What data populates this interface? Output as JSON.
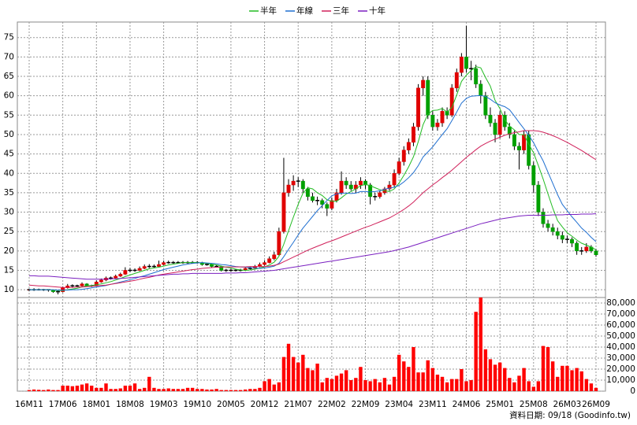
{
  "chart_data": {
    "type": "candlestick",
    "categories": [
      "16M11",
      null,
      null,
      null,
      null,
      null,
      null,
      "17M06",
      null,
      null,
      null,
      null,
      null,
      null,
      "18M01",
      null,
      null,
      null,
      null,
      null,
      null,
      "18M08",
      null,
      null,
      null,
      null,
      null,
      null,
      "19M03",
      null,
      null,
      null,
      null,
      null,
      null,
      "19M10",
      null,
      null,
      null,
      null,
      null,
      null,
      "20M05",
      null,
      null,
      null,
      null,
      null,
      null,
      "20M12",
      null,
      null,
      null,
      null,
      null,
      null,
      "21M07",
      null,
      null,
      null,
      null,
      null,
      null,
      "22M02",
      null,
      null,
      null,
      null,
      null,
      null,
      "22M09",
      null,
      null,
      null,
      null,
      null,
      null,
      "23M04",
      null,
      null,
      null,
      null,
      null,
      null,
      "23M11",
      null,
      null,
      null,
      null,
      null,
      null,
      "24M06",
      null,
      null,
      null,
      null,
      null,
      null,
      "25M01",
      null,
      null,
      null,
      null,
      null,
      null,
      "25M08",
      null,
      null,
      null,
      null,
      null,
      null,
      "26M03",
      null,
      null,
      null,
      null,
      null,
      "26M09"
    ],
    "candles": [
      [
        9.8,
        10.3,
        9.6,
        10
      ],
      [
        10,
        10.4,
        9.7,
        10
      ],
      [
        10,
        10.3,
        9.8,
        10
      ],
      [
        10,
        10.2,
        9.7,
        10
      ],
      [
        10,
        10.1,
        9.5,
        9.8
      ],
      [
        9.8,
        9.9,
        9.2,
        9.5
      ],
      [
        9.5,
        9.8,
        8.8,
        9.5
      ],
      [
        9.5,
        10.8,
        9.3,
        10.5
      ],
      [
        10.5,
        11.5,
        10.3,
        11
      ],
      [
        11,
        11.4,
        10.6,
        11
      ],
      [
        11,
        11.3,
        10.7,
        11
      ],
      [
        11,
        11.9,
        10.8,
        11.5
      ],
      [
        11.5,
        11.7,
        10.8,
        11
      ],
      [
        11,
        11.3,
        10.7,
        11
      ],
      [
        11,
        12.4,
        10.9,
        12
      ],
      [
        12,
        12.9,
        11.8,
        12.5
      ],
      [
        12.5,
        13.4,
        12.2,
        13
      ],
      [
        13,
        13.4,
        12.6,
        13
      ],
      [
        13,
        13.9,
        12.8,
        13.5
      ],
      [
        13.5,
        14.4,
        13.3,
        14
      ],
      [
        14,
        15.8,
        13.8,
        15
      ],
      [
        15,
        15.6,
        14.5,
        15
      ],
      [
        15,
        15.5,
        14.6,
        15
      ],
      [
        15,
        16,
        14.8,
        15.5
      ],
      [
        15.5,
        16.5,
        15.3,
        16
      ],
      [
        16,
        16.6,
        15.6,
        16
      ],
      [
        16,
        16.5,
        15.6,
        16
      ],
      [
        16,
        17.5,
        15.8,
        16.5
      ],
      [
        16.5,
        17.5,
        16.3,
        17
      ],
      [
        17,
        17.5,
        16.7,
        17
      ],
      [
        17,
        17.4,
        16.7,
        17
      ],
      [
        17,
        17.4,
        16.7,
        17
      ],
      [
        17,
        17.4,
        16.7,
        17
      ],
      [
        17,
        17.4,
        16.7,
        17
      ],
      [
        17,
        17.4,
        16.7,
        17
      ],
      [
        17,
        17.4,
        16.7,
        17
      ],
      [
        17,
        17.2,
        16.2,
        16.5
      ],
      [
        16.5,
        16.9,
        16.2,
        16.5
      ],
      [
        16.5,
        16.8,
        15.7,
        16
      ],
      [
        16,
        16.4,
        15.7,
        16
      ],
      [
        16,
        16.2,
        14.7,
        15
      ],
      [
        15,
        15.4,
        14.6,
        15
      ],
      [
        15,
        15.4,
        14.7,
        15
      ],
      [
        15,
        15.4,
        14.7,
        15
      ],
      [
        15,
        15.4,
        14.7,
        15
      ],
      [
        15,
        15.8,
        14.8,
        15.5
      ],
      [
        15.5,
        15.9,
        15.2,
        15.5
      ],
      [
        15.5,
        16.4,
        15.3,
        16
      ],
      [
        16,
        17,
        15.8,
        16.5
      ],
      [
        16.5,
        17.6,
        16.2,
        17
      ],
      [
        17,
        18.6,
        16.8,
        18
      ],
      [
        18,
        19.8,
        17.6,
        19
      ],
      [
        19,
        26,
        18.8,
        25
      ],
      [
        25,
        44,
        24.5,
        35
      ],
      [
        35,
        38.5,
        34,
        37
      ],
      [
        37,
        39.5,
        35.5,
        38
      ],
      [
        38,
        39,
        36.5,
        38
      ],
      [
        38,
        38.5,
        35,
        36
      ],
      [
        36,
        36.5,
        33,
        34
      ],
      [
        34,
        35,
        32.5,
        33
      ],
      [
        33,
        34,
        31.8,
        33
      ],
      [
        33,
        33.5,
        31,
        32
      ],
      [
        32,
        32.5,
        29,
        31
      ],
      [
        31,
        33.8,
        30.5,
        33
      ],
      [
        33,
        36,
        32.5,
        35
      ],
      [
        35,
        40.5,
        34.5,
        38
      ],
      [
        38,
        39,
        36,
        37
      ],
      [
        37,
        38,
        35.5,
        36
      ],
      [
        36,
        38,
        35,
        37
      ],
      [
        37,
        39,
        36,
        38
      ],
      [
        38,
        38.5,
        36,
        37
      ],
      [
        37,
        37.5,
        32,
        34
      ],
      [
        34,
        35,
        33,
        34
      ],
      [
        34,
        35.5,
        33.5,
        35
      ],
      [
        35,
        36.5,
        34.5,
        36
      ],
      [
        36,
        38,
        35.5,
        37
      ],
      [
        37,
        41,
        36.5,
        40
      ],
      [
        40,
        44,
        39.5,
        43
      ],
      [
        43,
        47,
        42,
        46
      ],
      [
        46,
        49,
        45,
        48
      ],
      [
        48,
        53,
        47,
        52
      ],
      [
        52,
        63,
        51,
        62
      ],
      [
        62,
        65,
        60,
        64
      ],
      [
        64,
        65,
        54,
        55
      ],
      [
        55,
        56,
        51,
        52
      ],
      [
        52,
        54,
        51,
        53
      ],
      [
        53,
        57,
        52,
        56
      ],
      [
        56,
        57,
        54,
        55
      ],
      [
        55,
        63,
        54.5,
        62
      ],
      [
        62,
        67,
        61,
        66
      ],
      [
        66,
        71,
        65,
        70
      ],
      [
        70,
        78,
        66,
        67
      ],
      [
        67,
        69,
        64,
        67
      ],
      [
        67,
        68,
        62,
        63
      ],
      [
        63,
        64,
        58,
        60
      ],
      [
        60,
        61,
        54,
        55
      ],
      [
        55,
        57,
        52,
        53
      ],
      [
        53,
        54,
        48,
        50
      ],
      [
        50,
        56,
        49,
        55
      ],
      [
        55,
        56,
        51,
        52
      ],
      [
        52,
        53,
        49,
        50
      ],
      [
        50,
        51,
        46,
        47
      ],
      [
        47,
        48,
        41,
        46
      ],
      [
        46,
        51,
        45,
        50
      ],
      [
        50,
        51,
        41,
        42
      ],
      [
        42,
        43,
        35,
        37
      ],
      [
        37,
        38,
        29,
        30
      ],
      [
        30,
        31,
        26,
        27
      ],
      [
        27,
        28,
        25,
        26
      ],
      [
        26,
        27,
        24,
        25
      ],
      [
        25,
        26,
        23,
        24
      ],
      [
        24,
        25,
        22,
        23
      ],
      [
        23,
        24,
        22,
        23
      ],
      [
        23,
        23.5,
        21,
        22
      ],
      [
        22,
        22.5,
        19,
        20
      ],
      [
        20,
        21,
        19,
        20
      ],
      [
        20,
        22,
        19.5,
        21
      ],
      [
        21,
        21.5,
        19.5,
        20
      ],
      [
        20,
        20.5,
        18.5,
        19
      ]
    ],
    "up_color": "#e00000",
    "down_color": "#00a000",
    "series": [
      {
        "name": "半年",
        "color": "#22bb22",
        "values": [
          10,
          10,
          10,
          10,
          10,
          9.9,
          9.8,
          9.8,
          10,
          10.2,
          10.4,
          10.7,
          11,
          11.1,
          11.3,
          11.5,
          11.8,
          12.1,
          12.5,
          12.9,
          13.4,
          13.8,
          14.2,
          14.6,
          15,
          15.4,
          15.6,
          15.8,
          16.1,
          16.4,
          16.6,
          16.8,
          17,
          17,
          17,
          17,
          16.9,
          16.8,
          16.6,
          16.4,
          16.1,
          15.8,
          15.6,
          15.3,
          15.1,
          15,
          15.1,
          15.3,
          15.6,
          15.9,
          16.4,
          17.1,
          18.6,
          21.7,
          25.2,
          28.7,
          32,
          34.9,
          36.3,
          36,
          35,
          34.3,
          33.2,
          32.8,
          32.8,
          33.7,
          34.7,
          35.3,
          36,
          36.8,
          37.2,
          36.8,
          36.3,
          35.8,
          35.5,
          35.3,
          36,
          37.5,
          39.5,
          41.7,
          44.3,
          48.2,
          52.5,
          55.2,
          56.2,
          56.3,
          56.7,
          55.8,
          57,
          60.2,
          63.7,
          65.3,
          66.5,
          67.5,
          67.2,
          64.7,
          62.5,
          58.8,
          56.7,
          53.8,
          52.2,
          51.2,
          50,
          50,
          47.5,
          45.3,
          42,
          38.5,
          34.7,
          31,
          27.8,
          26.2,
          24.7,
          23.8,
          22.8,
          22,
          21.5,
          21,
          20.3
        ]
      },
      {
        "name": "年線",
        "color": "#1f6fd0",
        "values": [
          10,
          10,
          10,
          10,
          10,
          10,
          9.9,
          9.9,
          9.9,
          10,
          10,
          10.1,
          10.3,
          10.5,
          10.7,
          10.9,
          11.1,
          11.4,
          11.7,
          12,
          12.3,
          12.6,
          12.9,
          13.3,
          13.6,
          14,
          14.4,
          14.8,
          15.2,
          15.5,
          15.8,
          16.1,
          16.4,
          16.6,
          16.8,
          16.9,
          17,
          16.9,
          16.8,
          16.7,
          16.5,
          16.4,
          16.2,
          16,
          15.9,
          15.8,
          15.7,
          15.6,
          15.5,
          15.6,
          15.8,
          16.1,
          16.8,
          18.5,
          20.4,
          22.2,
          24.1,
          25.9,
          27.4,
          28.9,
          30.4,
          31.7,
          33,
          34.2,
          34.7,
          34.9,
          34.9,
          34.8,
          34.9,
          35.3,
          35.3,
          35.2,
          35.3,
          35.5,
          35.9,
          36.2,
          36.4,
          36.9,
          37.8,
          38.9,
          40.2,
          42,
          44.2,
          45.5,
          46.8,
          48.4,
          50,
          51.5,
          53.6,
          55.8,
          58.1,
          59.3,
          59.9,
          60,
          60.1,
          59.8,
          59.1,
          58.2,
          57.6,
          57.2,
          56.4,
          54.8,
          53.1,
          51.5,
          49.8,
          47.9,
          45.5,
          43.2,
          40.3,
          37.4,
          34.5,
          32,
          30.4,
          28.8,
          27.4,
          25.9,
          24.8,
          23.5,
          22.4
        ]
      },
      {
        "name": "三年",
        "color": "#d0205a",
        "values": [
          11.2,
          11.1,
          11,
          11,
          10.9,
          10.8,
          10.7,
          10.6,
          10.6,
          10.6,
          10.7,
          10.7,
          10.8,
          10.9,
          11,
          11.1,
          11.2,
          11.4,
          11.6,
          11.8,
          12,
          12.2,
          12.4,
          12.7,
          13,
          13.2,
          13.5,
          13.8,
          14,
          14.2,
          14.4,
          14.6,
          14.8,
          15,
          15.2,
          15.3,
          15.5,
          15.6,
          15.7,
          15.8,
          15.8,
          15.9,
          15.9,
          15.9,
          15.9,
          15.9,
          16,
          16,
          16,
          16,
          16.1,
          16.3,
          16.6,
          17.2,
          17.8,
          18.4,
          19,
          19.6,
          20.2,
          20.7,
          21.2,
          21.7,
          22.2,
          22.6,
          23.1,
          23.6,
          24.1,
          24.6,
          25.1,
          25.6,
          26.1,
          26.5,
          27,
          27.5,
          28,
          28.5,
          29.2,
          29.9,
          30.7,
          31.6,
          32.6,
          33.8,
          35,
          36,
          37,
          37.9,
          38.9,
          39.8,
          40.8,
          41.9,
          43,
          44.1,
          45.1,
          46.1,
          47,
          47.7,
          48.3,
          48.8,
          49.3,
          49.8,
          50.2,
          50.5,
          50.7,
          51,
          51,
          51,
          50.9,
          50.6,
          50.2,
          49.7,
          49.2,
          48.6,
          48,
          47.3,
          46.6,
          45.9,
          45.1,
          44.3,
          43.5
        ]
      },
      {
        "name": "十年",
        "color": "#7a1fc0",
        "values": [
          13.6,
          13.6,
          13.5,
          13.5,
          13.5,
          13.4,
          13.3,
          13.2,
          13.1,
          13,
          12.9,
          12.8,
          12.7,
          12.7,
          12.7,
          12.7,
          12.7,
          12.8,
          12.8,
          12.9,
          13,
          13.1,
          13.2,
          13.3,
          13.4,
          13.5,
          13.6,
          13.7,
          13.8,
          13.9,
          14,
          14,
          14.1,
          14.1,
          14.2,
          14.2,
          14.2,
          14.2,
          14.2,
          14.2,
          14.2,
          14.3,
          14.3,
          14.3,
          14.4,
          14.4,
          14.5,
          14.6,
          14.7,
          14.8,
          14.9,
          15,
          15.2,
          15.4,
          15.6,
          15.8,
          16,
          16.2,
          16.4,
          16.6,
          16.8,
          17,
          17.2,
          17.4,
          17.6,
          17.8,
          18,
          18.2,
          18.4,
          18.6,
          18.8,
          19,
          19.2,
          19.4,
          19.6,
          19.8,
          20.1,
          20.4,
          20.7,
          21,
          21.4,
          21.8,
          22.2,
          22.6,
          23,
          23.4,
          23.8,
          24.2,
          24.6,
          25,
          25.4,
          25.8,
          26.2,
          26.6,
          27,
          27.3,
          27.6,
          27.9,
          28.2,
          28.4,
          28.6,
          28.8,
          29,
          29.1,
          29.2,
          29.2,
          29.2,
          29.2,
          29.2,
          29.3,
          29.3,
          29.3,
          29.4,
          29.4,
          29.4,
          29.5,
          29.5,
          29.5,
          29.6
        ]
      }
    ],
    "volume": [
      1000,
      1500,
      1200,
      1000,
      1500,
      1000,
      1000,
      5000,
      5000,
      4500,
      5000,
      6000,
      7000,
      5000,
      3000,
      3000,
      7000,
      2000,
      2000,
      2500,
      5000,
      5000,
      7000,
      2000,
      3000,
      13000,
      3000,
      2000,
      2000,
      2500,
      2000,
      2000,
      2000,
      3000,
      3000,
      2000,
      2000,
      1500,
      1500,
      2000,
      1000,
      1000,
      1000,
      1000,
      1000,
      1500,
      2000,
      2000,
      3000,
      9000,
      11000,
      6000,
      8000,
      31000,
      43000,
      31000,
      26000,
      33000,
      21000,
      19000,
      25000,
      8000,
      12000,
      11000,
      14000,
      16000,
      19000,
      10000,
      12000,
      22000,
      10000,
      9000,
      11000,
      8000,
      12000,
      6000,
      13000,
      33000,
      27000,
      22000,
      40000,
      17000,
      17000,
      28000,
      21000,
      15000,
      13000,
      8000,
      11000,
      11000,
      20000,
      9000,
      10000,
      72000,
      85000,
      38000,
      29000,
      24000,
      26000,
      21000,
      12000,
      8000,
      14000,
      21000,
      9000,
      4000,
      9000,
      41000,
      40000,
      27000,
      13000,
      23000,
      23000,
      19000,
      21000,
      18000,
      11000,
      7000,
      3000
    ],
    "volume_color": "#ff0000",
    "ylim": [
      8,
      79
    ],
    "yticks": [
      10,
      15,
      20,
      25,
      30,
      35,
      40,
      45,
      50,
      55,
      60,
      65,
      70,
      75
    ],
    "y2lim": [
      0,
      85000
    ],
    "y2ticks": [
      0,
      {
        "value": 10000,
        "label": "10,000"
      },
      {
        "value": 20000,
        "label": "20,000"
      },
      {
        "value": 30000,
        "label": "30,000"
      },
      {
        "value": 40000,
        "label": "40,000"
      },
      {
        "value": 50000,
        "label": "50,000"
      },
      {
        "value": 60000,
        "label": "60,000"
      },
      {
        "value": 70000,
        "label": "70,000"
      },
      {
        "value": 80000,
        "label": "80,000"
      }
    ],
    "grid": true,
    "footer": "資料日期: 09/18  (Goodinfo.tw)"
  }
}
